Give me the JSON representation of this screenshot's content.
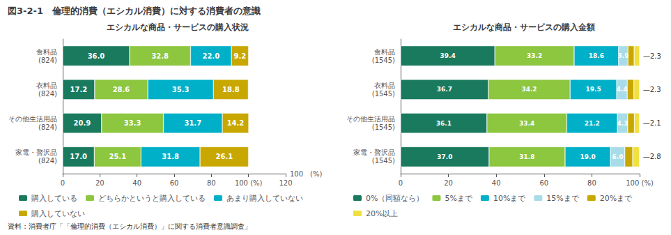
{
  "title": "図3-2-1　倫理的消費（エシカル消費）に対する消費者の意識",
  "annotations": [
    "資料：消費者庁「「倫理的消費（エシカル消費）」に関する消費者意識調査」"
  ],
  "chart_data": [
    {
      "type": "bar",
      "orientation": "horizontal",
      "stacked": true,
      "data_labels": true,
      "grid": false,
      "legend": "lower left",
      "title": "エシカルな商品・サービスの購入状況",
      "categories": [
        "食料品\n(824)",
        "衣料品\n(824)",
        "その他生活用品\n(824)",
        "家電・贅沢品\n(824)"
      ],
      "series": [
        {
          "name": "購入している",
          "color": "#1a7a5e",
          "values": [
            36.0,
            17.2,
            20.9,
            17.0
          ],
          "value_labels": [
            "36.0",
            "17.2",
            "20.9",
            "17.0"
          ]
        },
        {
          "name": "どちらかというと購入している",
          "color": "#8dc63f",
          "values": [
            32.8,
            28.6,
            33.3,
            25.1
          ],
          "value_labels": [
            "32.8",
            "28.6",
            "33.3",
            "25.1"
          ]
        },
        {
          "name": "あまり購入していない",
          "color": "#00b0c8",
          "values": [
            22.0,
            35.3,
            31.7,
            31.8
          ],
          "value_labels": [
            "22.0",
            "35.3",
            "31.7",
            "31.8"
          ]
        },
        {
          "name": "購入していない",
          "color": "#c8a800",
          "values": [
            9.2,
            18.8,
            14.2,
            26.1
          ],
          "value_labels": [
            "9.2",
            "18.8",
            "14.2",
            "26.1"
          ]
        }
      ],
      "xlim": [
        0,
        120
      ],
      "xticks": [
        0,
        20,
        40,
        60,
        80,
        {
          "value": 100,
          "label": "100 (%)"
        },
        120
      ],
      "xlabel": "100　(%)"
    },
    {
      "type": "bar",
      "orientation": "horizontal",
      "stacked": true,
      "data_labels": true,
      "grid": false,
      "legend": "lower left",
      "title": "エシカルな商品・サービスの購入金額",
      "categories": [
        "食料品\n(1545)",
        "衣料品\n(1545)",
        "その他生活用品\n(1545)",
        "家電・贅沢品\n(1545)"
      ],
      "series": [
        {
          "name": "0%（同額なら）",
          "color": "#1a7a5e",
          "values": [
            39.4,
            36.7,
            36.1,
            37.0
          ],
          "value_labels": [
            "39.4",
            "36.7",
            "36.1",
            "37.0"
          ]
        },
        {
          "name": "5%まで",
          "color": "#8dc63f",
          "values": [
            33.2,
            34.2,
            33.4,
            31.8
          ],
          "value_labels": [
            "33.2",
            "34.2",
            "33.4",
            "31.8"
          ]
        },
        {
          "name": "10%まで",
          "color": "#00b0c8",
          "values": [
            18.6,
            19.5,
            21.2,
            19.0
          ],
          "value_labels": [
            "18.6",
            "19.5",
            "21.2",
            "19.0"
          ]
        },
        {
          "name": "15%まで",
          "color": "#a8dce8",
          "values": [
            3.9,
            4.4,
            4.3,
            6.0
          ],
          "value_labels": [
            "3.9",
            "4.4",
            "4.3",
            "6.0"
          ]
        },
        {
          "name": "20%まで",
          "color": "#c8a800",
          "values": [
            2.6,
            2.8,
            2.8,
            3.3
          ],
          "value_labels": [
            null,
            null,
            null,
            null
          ]
        },
        {
          "name": "20%以上",
          "color": "#f0e040",
          "values": [
            2.3,
            2.3,
            2.1,
            2.8
          ],
          "value_labels": [
            null,
            null,
            null,
            null
          ]
        }
      ],
      "annotations": [
        "—2.3",
        "—2.3",
        "—2.1",
        "—2.8"
      ],
      "xlim": [
        0,
        100
      ],
      "xticks": [
        0,
        20,
        40,
        60,
        80,
        {
          "value": 100,
          "label": "100 (%)"
        }
      ]
    }
  ]
}
